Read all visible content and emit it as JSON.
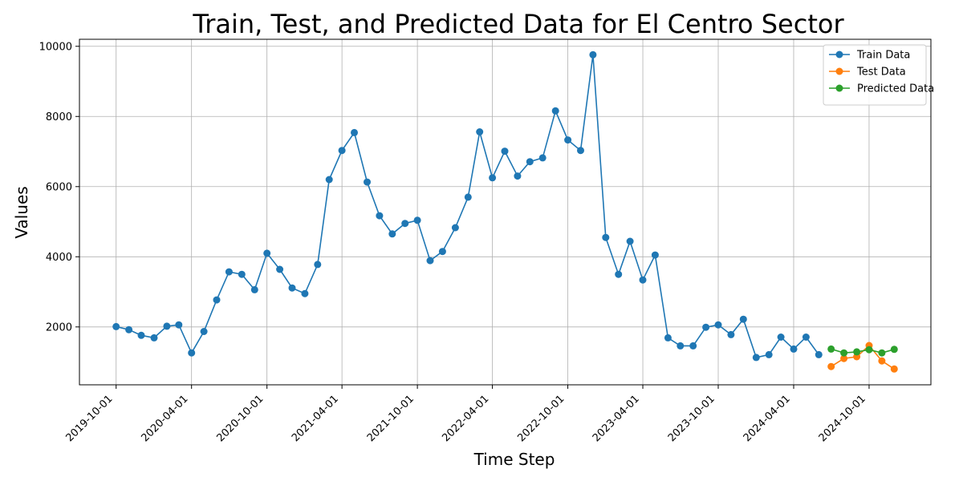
{
  "chart_data": {
    "type": "line",
    "title": "Train, Test, and Predicted Data for El Centro Sector",
    "xlabel": "Time Step",
    "ylabel": "Values",
    "x_ticks": [
      "2019-10-01",
      "2020-04-01",
      "2020-10-01",
      "2021-04-01",
      "2021-10-01",
      "2022-04-01",
      "2022-10-01",
      "2023-04-01",
      "2023-10-01",
      "2024-04-01",
      "2024-10-01"
    ],
    "y_ticks": [
      2000,
      4000,
      6000,
      8000,
      10000
    ],
    "ylim": [
      350,
      10200
    ],
    "xlim": [
      "2019-07-04",
      "2025-02-28"
    ],
    "grid": true,
    "legend_position": "top-right",
    "series": [
      {
        "name": "Train Data",
        "color": "#1f77b4",
        "points": [
          [
            "2019-10-01",
            2010
          ],
          [
            "2019-11-01",
            1920
          ],
          [
            "2019-12-01",
            1760
          ],
          [
            "2020-01-01",
            1690
          ],
          [
            "2020-02-01",
            2020
          ],
          [
            "2020-03-01",
            2060
          ],
          [
            "2020-04-01",
            1260
          ],
          [
            "2020-05-01",
            1870
          ],
          [
            "2020-06-01",
            2770
          ],
          [
            "2020-07-01",
            3570
          ],
          [
            "2020-08-01",
            3500
          ],
          [
            "2020-09-01",
            3060
          ],
          [
            "2020-10-01",
            4100
          ],
          [
            "2020-11-01",
            3640
          ],
          [
            "2020-12-01",
            3110
          ],
          [
            "2021-01-01",
            2950
          ],
          [
            "2021-02-01",
            3780
          ],
          [
            "2021-03-01",
            6200
          ],
          [
            "2021-04-01",
            7030
          ],
          [
            "2021-05-01",
            7540
          ],
          [
            "2021-06-01",
            6130
          ],
          [
            "2021-07-01",
            5170
          ],
          [
            "2021-08-01",
            4650
          ],
          [
            "2021-09-01",
            4950
          ],
          [
            "2021-10-01",
            5040
          ],
          [
            "2021-11-01",
            3890
          ],
          [
            "2021-12-01",
            4150
          ],
          [
            "2022-01-01",
            4830
          ],
          [
            "2022-02-01",
            5700
          ],
          [
            "2022-03-01",
            7560
          ],
          [
            "2022-04-01",
            6250
          ],
          [
            "2022-05-01",
            7010
          ],
          [
            "2022-06-01",
            6300
          ],
          [
            "2022-07-01",
            6710
          ],
          [
            "2022-08-01",
            6820
          ],
          [
            "2022-09-01",
            8160
          ],
          [
            "2022-10-01",
            7330
          ],
          [
            "2022-11-01",
            7030
          ],
          [
            "2022-12-01",
            9760
          ],
          [
            "2023-01-01",
            4550
          ],
          [
            "2023-02-01",
            3500
          ],
          [
            "2023-03-01",
            4440
          ],
          [
            "2023-04-01",
            3340
          ],
          [
            "2023-05-01",
            4050
          ],
          [
            "2023-06-01",
            1690
          ],
          [
            "2023-07-01",
            1460
          ],
          [
            "2023-08-01",
            1460
          ],
          [
            "2023-09-01",
            1990
          ],
          [
            "2023-10-01",
            2060
          ],
          [
            "2023-11-01",
            1780
          ],
          [
            "2023-12-01",
            2220
          ],
          [
            "2024-01-01",
            1130
          ],
          [
            "2024-02-01",
            1210
          ],
          [
            "2024-03-01",
            1710
          ],
          [
            "2024-04-01",
            1370
          ],
          [
            "2024-05-01",
            1710
          ],
          [
            "2024-06-01",
            1210
          ]
        ]
      },
      {
        "name": "Test Data",
        "color": "#ff7f0e",
        "points": [
          [
            "2024-07-01",
            870
          ],
          [
            "2024-08-01",
            1100
          ],
          [
            "2024-09-01",
            1150
          ],
          [
            "2024-10-01",
            1470
          ],
          [
            "2024-11-01",
            1030
          ],
          [
            "2024-12-01",
            800
          ]
        ]
      },
      {
        "name": "Predicted Data",
        "color": "#2ca02c",
        "points": [
          [
            "2024-07-01",
            1370
          ],
          [
            "2024-08-01",
            1260
          ],
          [
            "2024-09-01",
            1290
          ],
          [
            "2024-10-01",
            1350
          ],
          [
            "2024-11-01",
            1260
          ],
          [
            "2024-12-01",
            1360
          ]
        ]
      }
    ]
  }
}
